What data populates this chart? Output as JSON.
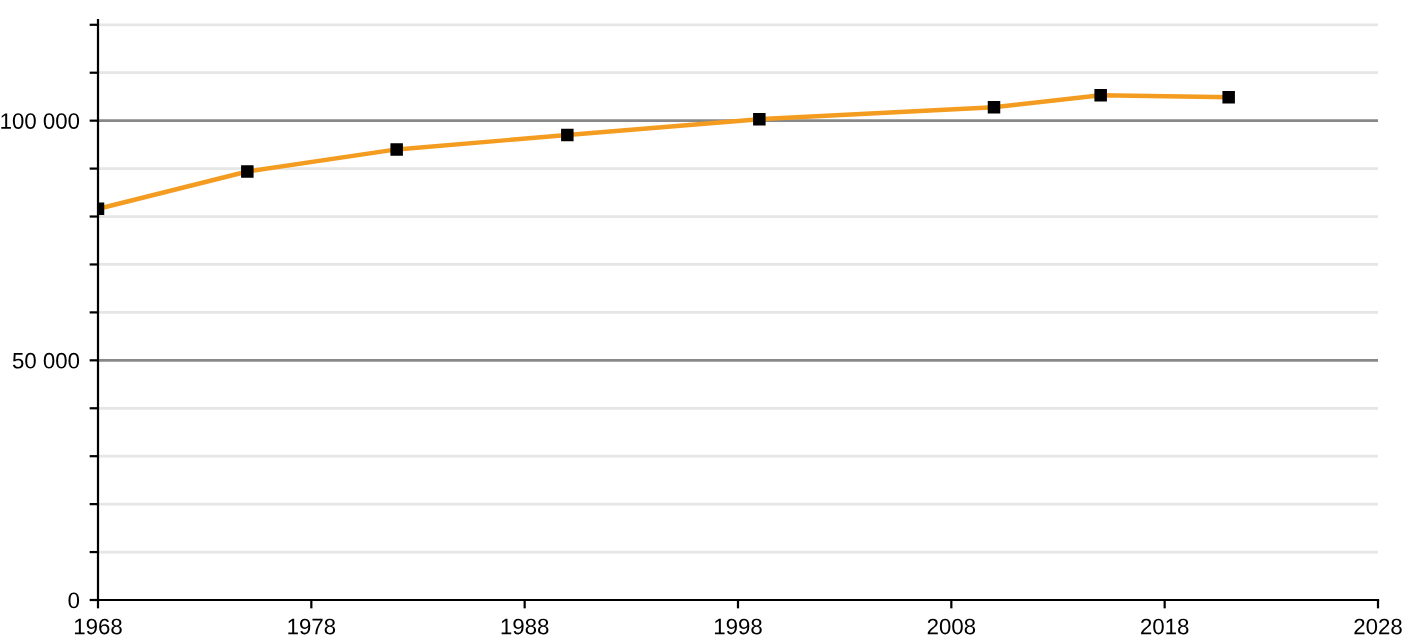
{
  "chart_data": {
    "type": "line",
    "x": [
      1968,
      1975,
      1982,
      1990,
      1999,
      2010,
      2015,
      2021
    ],
    "series": [
      {
        "color": "#f39c1f",
        "values": [
          81600,
          89400,
          94000,
          97000,
          100300,
          102800,
          105300,
          104900
        ]
      }
    ],
    "marker": "square",
    "grid": "y",
    "xlim": [
      1968,
      2028
    ],
    "xticks": [
      1968,
      1978,
      1988,
      1998,
      2008,
      2018,
      2028
    ],
    "ylim": [
      0,
      121000
    ],
    "yticks": [
      {
        "value": 0,
        "label": "0"
      },
      {
        "value": 10000,
        "label": null
      },
      {
        "value": 20000,
        "label": null
      },
      {
        "value": 30000,
        "label": null
      },
      {
        "value": 40000,
        "label": null
      },
      {
        "value": 50000,
        "label": "50 000"
      },
      {
        "value": 60000,
        "label": null
      },
      {
        "value": 70000,
        "label": null
      },
      {
        "value": 80000,
        "label": null
      },
      {
        "value": 90000,
        "label": null
      },
      {
        "value": 100000,
        "label": "100 000"
      },
      {
        "value": 110000,
        "label": null
      },
      {
        "value": 120000,
        "label": null
      }
    ]
  }
}
